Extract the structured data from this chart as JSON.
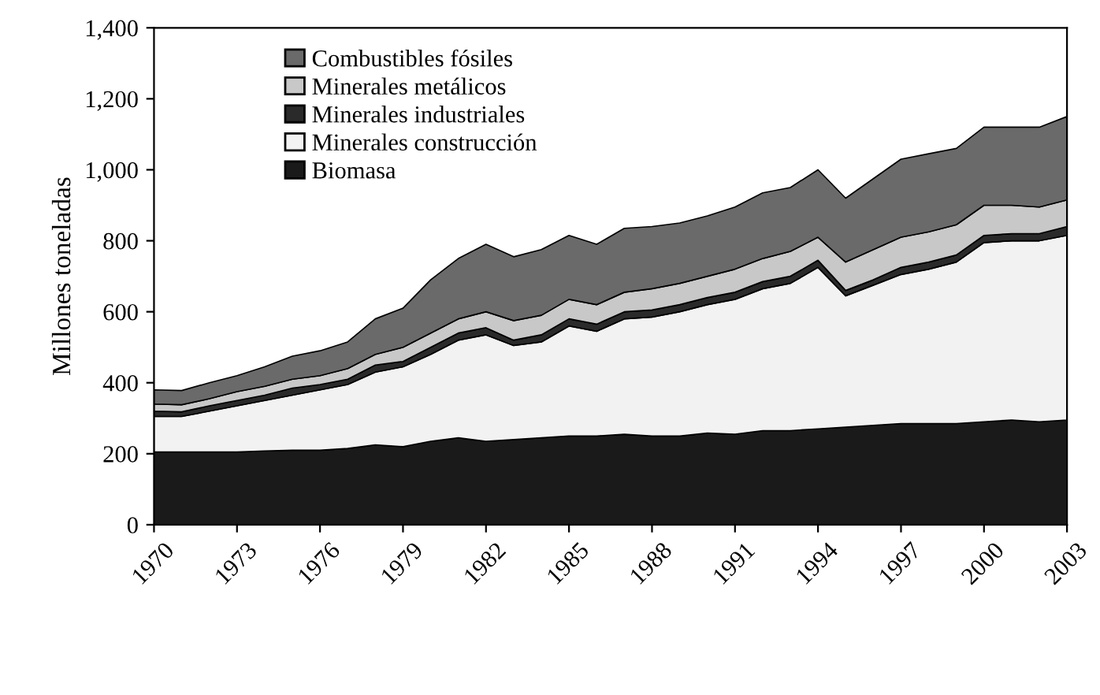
{
  "chart_data": {
    "type": "area",
    "stacked": true,
    "ylabel": "Millones toneladas",
    "x": [
      1970,
      1971,
      1972,
      1973,
      1974,
      1975,
      1976,
      1977,
      1978,
      1979,
      1980,
      1981,
      1982,
      1983,
      1984,
      1985,
      1986,
      1987,
      1988,
      1989,
      1990,
      1991,
      1992,
      1993,
      1994,
      1995,
      1996,
      1997,
      1998,
      1999,
      2000,
      2001,
      2002,
      2003
    ],
    "series": [
      {
        "name": "Biomasa",
        "color": "#1a1a1a",
        "values": [
          205,
          205,
          205,
          205,
          208,
          210,
          210,
          215,
          225,
          220,
          235,
          245,
          235,
          240,
          245,
          250,
          250,
          255,
          250,
          250,
          258,
          255,
          265,
          265,
          270,
          275,
          280,
          285,
          285,
          285,
          290,
          295,
          290,
          295
        ]
      },
      {
        "name": "Minerales construcción",
        "color": "#f2f2f2",
        "values": [
          100,
          100,
          115,
          130,
          142,
          155,
          170,
          180,
          205,
          225,
          245,
          275,
          300,
          265,
          270,
          310,
          295,
          325,
          335,
          350,
          362,
          380,
          400,
          415,
          455,
          370,
          395,
          420,
          435,
          455,
          505,
          505,
          510,
          520
        ]
      },
      {
        "name": "Minerales industriales",
        "color": "#2a2a2a",
        "values": [
          15,
          13,
          15,
          15,
          15,
          20,
          15,
          15,
          20,
          15,
          20,
          20,
          20,
          15,
          20,
          20,
          20,
          20,
          20,
          20,
          20,
          20,
          20,
          20,
          20,
          15,
          15,
          20,
          20,
          20,
          20,
          20,
          20,
          25
        ]
      },
      {
        "name": "Minerales metálicos",
        "color": "#c8c8c8",
        "values": [
          20,
          20,
          20,
          25,
          25,
          25,
          25,
          30,
          30,
          40,
          40,
          40,
          45,
          55,
          55,
          55,
          55,
          55,
          60,
          60,
          60,
          65,
          65,
          70,
          65,
          80,
          85,
          85,
          85,
          85,
          85,
          80,
          75,
          75
        ]
      },
      {
        "name": "Combustibles fósiles",
        "color": "#6a6a6a",
        "values": [
          40,
          40,
          45,
          45,
          55,
          65,
          70,
          75,
          100,
          110,
          150,
          170,
          190,
          180,
          185,
          180,
          170,
          180,
          175,
          170,
          170,
          175,
          185,
          180,
          190,
          180,
          200,
          220,
          220,
          215,
          220,
          220,
          225,
          235
        ]
      }
    ],
    "xlim": [
      1970,
      2003
    ],
    "xticks": [
      1970,
      1973,
      1976,
      1979,
      1982,
      1985,
      1988,
      1991,
      1994,
      1997,
      2000,
      2003
    ],
    "ylim": [
      0,
      1400
    ],
    "yticks": [
      {
        "value": 0,
        "label": "0"
      },
      {
        "value": 200,
        "label": "200"
      },
      {
        "value": 400,
        "label": "400"
      },
      {
        "value": 600,
        "label": "600"
      },
      {
        "value": 800,
        "label": "800"
      },
      {
        "value": 1000,
        "label": "1,000"
      },
      {
        "value": 1200,
        "label": "1,200"
      },
      {
        "value": 1400,
        "label": "1,400"
      }
    ],
    "legend": "top left",
    "grid": false
  }
}
